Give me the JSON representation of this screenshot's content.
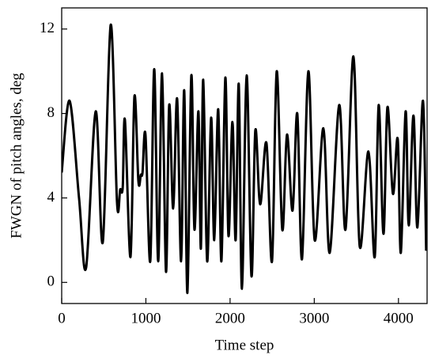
{
  "chart_data": {
    "type": "line",
    "xlabel": "Time step",
    "ylabel": "FWGN of pitch angles, deg",
    "xlim": [
      0,
      4340
    ],
    "ylim": [
      -1,
      13
    ],
    "xticks": [
      0,
      1000,
      2000,
      3000,
      4000
    ],
    "yticks": [
      0,
      4,
      8,
      12
    ],
    "series": [
      {
        "color": "#000000",
        "x": [
          0,
          94,
          206,
          290,
          404,
          488,
          582,
          657,
          695,
          725,
          751,
          817,
          864,
          911,
          940,
          960,
          995,
          1052,
          1099,
          1146,
          1192,
          1239,
          1277,
          1324,
          1371,
          1418,
          1455,
          1493,
          1540,
          1577,
          1624,
          1653,
          1681,
          1728,
          1775,
          1812,
          1859,
          1897,
          1944,
          1981,
          2028,
          2066,
          2103,
          2141,
          2197,
          2254,
          2300,
          2357,
          2432,
          2498,
          2554,
          2620,
          2676,
          2742,
          2798,
          2854,
          2930,
          3005,
          3108,
          3183,
          3296,
          3371,
          3465,
          3540,
          3643,
          3718,
          3765,
          3822,
          3869,
          3934,
          3991,
          4028,
          4085,
          4122,
          4178,
          4225,
          4291,
          4329
        ],
        "values": [
          5.2,
          8.6,
          4.0,
          0.7,
          8.1,
          1.9,
          12.2,
          3.8,
          4.4,
          4.5,
          7.7,
          1.2,
          8.8,
          4.8,
          5.1,
          5.2,
          7.0,
          1.0,
          10.1,
          1.0,
          9.9,
          0.5,
          8.4,
          3.5,
          8.7,
          1.0,
          9.1,
          -0.5,
          9.8,
          2.5,
          8.1,
          1.6,
          9.6,
          1.0,
          7.8,
          2.0,
          8.2,
          1.0,
          9.7,
          2.2,
          7.6,
          2.0,
          9.4,
          -0.3,
          9.8,
          0.3,
          7.2,
          3.7,
          6.6,
          1.0,
          10.0,
          2.5,
          7.0,
          3.4,
          8.0,
          1.1,
          10.0,
          2.0,
          7.3,
          1.4,
          8.4,
          2.5,
          10.7,
          1.7,
          6.2,
          1.2,
          8.4,
          2.3,
          8.3,
          4.2,
          6.8,
          1.4,
          8.1,
          2.7,
          7.9,
          2.6,
          8.6,
          1.5
        ]
      }
    ]
  }
}
